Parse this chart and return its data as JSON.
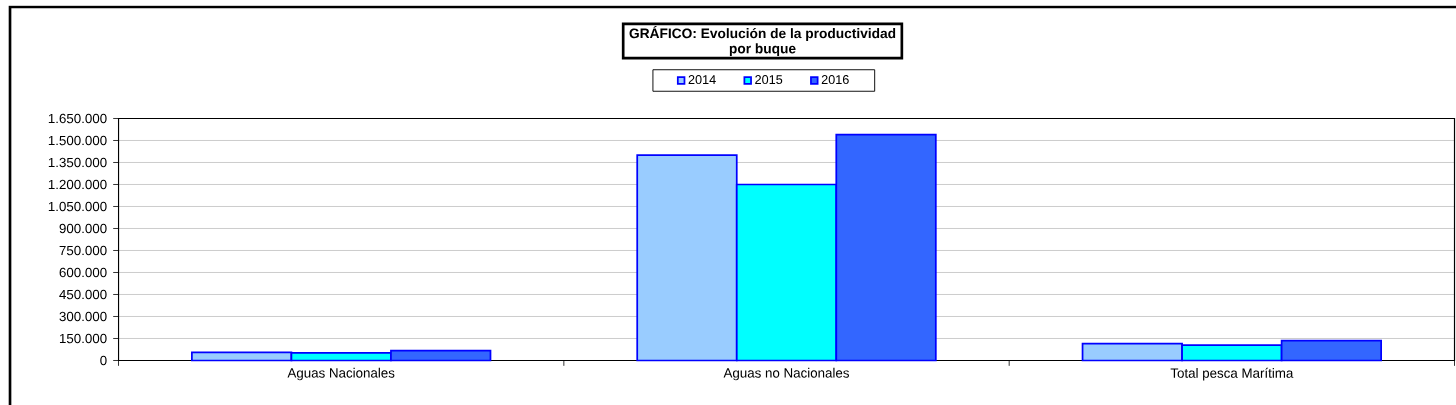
{
  "chart_data": {
    "type": "bar",
    "title": "GRÁFICO: Evolución de la productividad por buque",
    "categories": [
      "Aguas Nacionales",
      "Aguas no Nacionales",
      "Total pesca Marítima"
    ],
    "series": [
      {
        "name": "2014",
        "color": "#99ccff",
        "values": [
          55000,
          1400000,
          115000
        ]
      },
      {
        "name": "2015",
        "color": "#00ffff",
        "values": [
          52000,
          1200000,
          105000
        ]
      },
      {
        "name": "2016",
        "color": "#3366ff",
        "values": [
          68000,
          1540000,
          135000
        ]
      }
    ],
    "ylim": [
      0,
      1650000
    ],
    "yticks": [
      0,
      {
        "value": 150000,
        "label": "150.000"
      },
      {
        "value": 300000,
        "label": "300.000"
      },
      {
        "value": 450000,
        "label": "450.000"
      },
      {
        "value": 600000,
        "label": "600.000"
      },
      {
        "value": 750000,
        "label": "750.000"
      },
      {
        "value": 900000,
        "label": "900.000"
      },
      {
        "value": 1050000,
        "label": "1.050.000"
      },
      {
        "value": 1200000,
        "label": "1.200.000"
      },
      {
        "value": 1350000,
        "label": "1.350.000"
      },
      {
        "value": 1500000,
        "label": "1.500.000"
      },
      {
        "value": 1650000,
        "label": "1.650.000"
      }
    ],
    "grid": "y",
    "legend": "top"
  }
}
